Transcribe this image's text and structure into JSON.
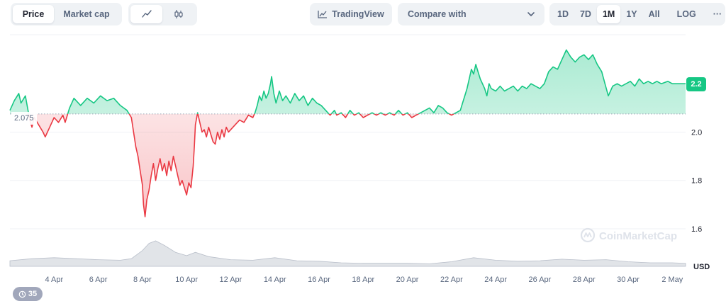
{
  "toolbar": {
    "chart_type": [
      {
        "label": "Price",
        "active": true
      },
      {
        "label": "Market cap",
        "active": false
      }
    ],
    "chart_style": [
      {
        "icon": "line-chart-icon",
        "active": true
      },
      {
        "icon": "candlestick-icon",
        "active": false
      }
    ],
    "tradingview_label": "TradingView",
    "compare_label": "Compare with",
    "ranges": [
      {
        "label": "1D",
        "active": false
      },
      {
        "label": "7D",
        "active": false
      },
      {
        "label": "1M",
        "active": true
      },
      {
        "label": "1Y",
        "active": false
      },
      {
        "label": "All",
        "active": false
      },
      {
        "label": "LOG",
        "active": false
      }
    ],
    "more_label": "···"
  },
  "current_price_label": "2.2",
  "reference_price_label": "2.075",
  "history_count": "35",
  "watermark": "CoinMarketCap",
  "colors": {
    "up": "#16c784",
    "down": "#ea3943",
    "volume": "#c8cdd6",
    "grid": "#eff2f5",
    "badge": "#16c784"
  },
  "chart_data": {
    "type": "line",
    "title": "",
    "ylabel": "",
    "unit": "USD",
    "ylim": [
      1.55,
      2.4
    ],
    "yticks": [
      1.6,
      1.8,
      2.0
    ],
    "yticks_labels": [
      "1.6",
      "1.8",
      "2.0"
    ],
    "baseline": 2.075,
    "x_tick_labels": [
      "4 Apr",
      "6 Apr",
      "8 Apr",
      "10 Apr",
      "12 Apr",
      "14 Apr",
      "16 Apr",
      "18 Apr",
      "20 Apr",
      "22 Apr",
      "24 Apr",
      "26 Apr",
      "28 Apr",
      "30 Apr",
      "2 May"
    ],
    "x_tick_days": [
      3,
      5,
      7,
      9,
      11,
      13,
      15,
      17,
      19,
      21,
      23,
      25,
      27,
      29,
      31
    ],
    "x_range_days": [
      1.0,
      31.6
    ],
    "series": [
      {
        "values": [
          [
            1.0,
            2.09
          ],
          [
            1.2,
            2.13
          ],
          [
            1.4,
            2.16
          ],
          [
            1.5,
            2.12
          ],
          [
            1.7,
            2.15
          ],
          [
            1.8,
            2.1
          ],
          [
            1.9,
            2.05
          ],
          [
            2.0,
            2.02
          ],
          [
            2.1,
            2.06
          ],
          [
            2.3,
            2.03
          ],
          [
            2.5,
            2.0
          ],
          [
            2.6,
            1.98
          ],
          [
            2.8,
            2.02
          ],
          [
            3.0,
            2.06
          ],
          [
            3.2,
            2.04
          ],
          [
            3.4,
            2.07
          ],
          [
            3.5,
            2.04
          ],
          [
            3.7,
            2.1
          ],
          [
            3.9,
            2.14
          ],
          [
            4.2,
            2.11
          ],
          [
            4.5,
            2.14
          ],
          [
            4.8,
            2.12
          ],
          [
            5.1,
            2.15
          ],
          [
            5.4,
            2.13
          ],
          [
            5.7,
            2.14
          ],
          [
            6.0,
            2.11
          ],
          [
            6.3,
            2.09
          ],
          [
            6.5,
            2.06
          ],
          [
            6.6,
            2.0
          ],
          [
            6.7,
            1.94
          ],
          [
            6.8,
            1.9
          ],
          [
            6.9,
            1.84
          ],
          [
            7.0,
            1.78
          ],
          [
            7.05,
            1.7
          ],
          [
            7.12,
            1.65
          ],
          [
            7.2,
            1.72
          ],
          [
            7.3,
            1.76
          ],
          [
            7.4,
            1.82
          ],
          [
            7.5,
            1.87
          ],
          [
            7.6,
            1.8
          ],
          [
            7.7,
            1.85
          ],
          [
            7.8,
            1.89
          ],
          [
            7.9,
            1.84
          ],
          [
            8.0,
            1.87
          ],
          [
            8.1,
            1.82
          ],
          [
            8.2,
            1.88
          ],
          [
            8.3,
            1.84
          ],
          [
            8.4,
            1.9
          ],
          [
            8.5,
            1.86
          ],
          [
            8.6,
            1.82
          ],
          [
            8.7,
            1.78
          ],
          [
            8.8,
            1.8
          ],
          [
            8.9,
            1.77
          ],
          [
            9.0,
            1.74
          ],
          [
            9.1,
            1.79
          ],
          [
            9.2,
            1.77
          ],
          [
            9.3,
            1.86
          ],
          [
            9.35,
            1.94
          ],
          [
            9.4,
            2.03
          ],
          [
            9.5,
            2.08
          ],
          [
            9.6,
            2.04
          ],
          [
            9.7,
            2.0
          ],
          [
            9.8,
            2.01
          ],
          [
            9.9,
            1.98
          ],
          [
            10.0,
            2.02
          ],
          [
            10.1,
            1.99
          ],
          [
            10.2,
            1.96
          ],
          [
            10.3,
            1.95
          ],
          [
            10.4,
            2.0
          ],
          [
            10.5,
            1.97
          ],
          [
            10.6,
            2.01
          ],
          [
            10.7,
            1.98
          ],
          [
            10.8,
            2.02
          ],
          [
            10.9,
            2.0
          ],
          [
            11.0,
            2.01
          ],
          [
            11.2,
            2.03
          ],
          [
            11.4,
            2.05
          ],
          [
            11.6,
            2.04
          ],
          [
            11.8,
            2.07
          ],
          [
            12.0,
            2.06
          ],
          [
            12.1,
            2.08
          ],
          [
            12.2,
            2.11
          ],
          [
            12.3,
            2.15
          ],
          [
            12.4,
            2.13
          ],
          [
            12.5,
            2.17
          ],
          [
            12.6,
            2.14
          ],
          [
            12.7,
            2.16
          ],
          [
            12.8,
            2.2
          ],
          [
            12.85,
            2.23
          ],
          [
            12.95,
            2.16
          ],
          [
            13.05,
            2.12
          ],
          [
            13.2,
            2.17
          ],
          [
            13.35,
            2.13
          ],
          [
            13.5,
            2.15
          ],
          [
            13.7,
            2.12
          ],
          [
            13.9,
            2.16
          ],
          [
            14.1,
            2.13
          ],
          [
            14.3,
            2.15
          ],
          [
            14.5,
            2.11
          ],
          [
            14.7,
            2.14
          ],
          [
            14.9,
            2.12
          ],
          [
            15.1,
            2.11
          ],
          [
            15.3,
            2.09
          ],
          [
            15.5,
            2.07
          ],
          [
            15.7,
            2.09
          ],
          [
            15.8,
            2.07
          ],
          [
            16.0,
            2.08
          ],
          [
            16.2,
            2.06
          ],
          [
            16.4,
            2.09
          ],
          [
            16.6,
            2.07
          ],
          [
            16.8,
            2.08
          ],
          [
            17.0,
            2.06
          ],
          [
            17.2,
            2.07
          ],
          [
            17.4,
            2.08
          ],
          [
            17.6,
            2.07
          ],
          [
            17.8,
            2.08
          ],
          [
            18.0,
            2.07
          ],
          [
            18.2,
            2.08
          ],
          [
            18.4,
            2.07
          ],
          [
            18.6,
            2.09
          ],
          [
            18.8,
            2.07
          ],
          [
            19.0,
            2.08
          ],
          [
            19.2,
            2.06
          ],
          [
            19.4,
            2.07
          ],
          [
            19.6,
            2.08
          ],
          [
            19.8,
            2.09
          ],
          [
            20.0,
            2.1
          ],
          [
            20.2,
            2.08
          ],
          [
            20.4,
            2.11
          ],
          [
            20.6,
            2.1
          ],
          [
            20.8,
            2.08
          ],
          [
            21.0,
            2.07
          ],
          [
            21.2,
            2.08
          ],
          [
            21.4,
            2.09
          ],
          [
            21.5,
            2.12
          ],
          [
            21.6,
            2.15
          ],
          [
            21.7,
            2.18
          ],
          [
            21.8,
            2.22
          ],
          [
            21.9,
            2.26
          ],
          [
            22.0,
            2.24
          ],
          [
            22.1,
            2.28
          ],
          [
            22.2,
            2.25
          ],
          [
            22.3,
            2.22
          ],
          [
            22.4,
            2.2
          ],
          [
            22.5,
            2.18
          ],
          [
            22.6,
            2.15
          ],
          [
            22.7,
            2.2
          ],
          [
            22.8,
            2.18
          ],
          [
            23.0,
            2.17
          ],
          [
            23.2,
            2.19
          ],
          [
            23.4,
            2.17
          ],
          [
            23.6,
            2.18
          ],
          [
            23.8,
            2.19
          ],
          [
            24.0,
            2.17
          ],
          [
            24.2,
            2.19
          ],
          [
            24.4,
            2.18
          ],
          [
            24.6,
            2.2
          ],
          [
            24.8,
            2.19
          ],
          [
            25.0,
            2.18
          ],
          [
            25.2,
            2.2
          ],
          [
            25.4,
            2.25
          ],
          [
            25.6,
            2.27
          ],
          [
            25.8,
            2.26
          ],
          [
            26.0,
            2.3
          ],
          [
            26.2,
            2.34
          ],
          [
            26.4,
            2.31
          ],
          [
            26.6,
            2.29
          ],
          [
            26.8,
            2.31
          ],
          [
            27.0,
            2.32
          ],
          [
            27.2,
            2.3
          ],
          [
            27.4,
            2.32
          ],
          [
            27.6,
            2.28
          ],
          [
            27.8,
            2.25
          ],
          [
            27.95,
            2.2
          ],
          [
            28.1,
            2.15
          ],
          [
            28.3,
            2.19
          ],
          [
            28.5,
            2.2
          ],
          [
            28.7,
            2.19
          ],
          [
            28.9,
            2.2
          ],
          [
            29.1,
            2.21
          ],
          [
            29.3,
            2.19
          ],
          [
            29.5,
            2.22
          ],
          [
            29.7,
            2.2
          ],
          [
            29.9,
            2.21
          ],
          [
            30.1,
            2.2
          ],
          [
            30.3,
            2.21
          ],
          [
            30.5,
            2.2
          ],
          [
            30.8,
            2.21
          ],
          [
            31.0,
            2.2
          ],
          [
            31.3,
            2.2
          ],
          [
            31.6,
            2.2
          ]
        ]
      }
    ],
    "volume": [
      [
        1.0,
        0.22
      ],
      [
        2.0,
        0.3
      ],
      [
        3.0,
        0.34
      ],
      [
        4.0,
        0.3
      ],
      [
        5.0,
        0.26
      ],
      [
        6.0,
        0.24
      ],
      [
        6.5,
        0.3
      ],
      [
        7.0,
        0.62
      ],
      [
        7.3,
        0.9
      ],
      [
        7.6,
        1.0
      ],
      [
        8.0,
        0.82
      ],
      [
        8.5,
        0.55
      ],
      [
        9.0,
        0.42
      ],
      [
        9.4,
        0.55
      ],
      [
        10.0,
        0.38
      ],
      [
        11.0,
        0.26
      ],
      [
        12.0,
        0.24
      ],
      [
        13.0,
        0.34
      ],
      [
        14.0,
        0.22
      ],
      [
        15.0,
        0.2
      ],
      [
        16.0,
        0.14
      ],
      [
        17.0,
        0.12
      ],
      [
        18.0,
        0.12
      ],
      [
        19.0,
        0.12
      ],
      [
        20.0,
        0.1
      ],
      [
        21.0,
        0.18
      ],
      [
        22.0,
        0.34
      ],
      [
        23.0,
        0.24
      ],
      [
        24.0,
        0.2
      ],
      [
        25.0,
        0.22
      ],
      [
        26.0,
        0.28
      ],
      [
        27.0,
        0.24
      ],
      [
        28.0,
        0.26
      ],
      [
        29.0,
        0.18
      ],
      [
        30.0,
        0.14
      ],
      [
        31.0,
        0.14
      ],
      [
        31.6,
        0.12
      ]
    ]
  }
}
